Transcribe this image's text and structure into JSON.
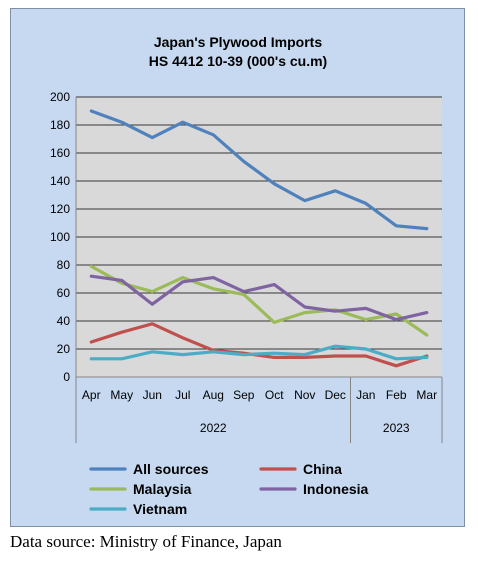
{
  "chart_data": {
    "type": "line",
    "title_lines": [
      "Japan's Plywood Imports",
      "HS 4412 10-39  (000's cu.m)"
    ],
    "categories": [
      "Apr",
      "May",
      "Jun",
      "Jul",
      "Aug",
      "Sep",
      "Oct",
      "Nov",
      "Dec",
      "Jan",
      "Feb",
      "Mar"
    ],
    "year_groups": [
      {
        "label": "2022",
        "start": 0,
        "end": 8
      },
      {
        "label": "2023",
        "start": 9,
        "end": 11
      }
    ],
    "ylim": [
      0,
      200
    ],
    "yticks": [
      0,
      20,
      40,
      60,
      80,
      100,
      120,
      140,
      160,
      180,
      200
    ],
    "grid": true,
    "legend_position": "bottom",
    "series": [
      {
        "name": "All sources",
        "color": "#4f81bd",
        "values": [
          190,
          182,
          171,
          182,
          173,
          154,
          138,
          126,
          133,
          124,
          108,
          106
        ]
      },
      {
        "name": "China",
        "color": "#c0504d",
        "values": [
          25,
          32,
          38,
          28,
          19,
          17,
          14,
          14,
          15,
          15,
          8,
          15
        ]
      },
      {
        "name": "Malaysia",
        "color": "#9bbb59",
        "values": [
          79,
          67,
          61,
          71,
          63,
          59,
          39,
          46,
          48,
          41,
          45,
          30
        ]
      },
      {
        "name": "Indonesia",
        "color": "#8064a2",
        "values": [
          72,
          69,
          52,
          68,
          71,
          61,
          66,
          50,
          47,
          49,
          41,
          46
        ]
      },
      {
        "name": "Vietnam",
        "color": "#4bacc6",
        "values": [
          13,
          13,
          18,
          16,
          18,
          16,
          17,
          16,
          22,
          20,
          13,
          14
        ]
      }
    ]
  },
  "source_text": "Data source: Ministry of Finance, Japan"
}
